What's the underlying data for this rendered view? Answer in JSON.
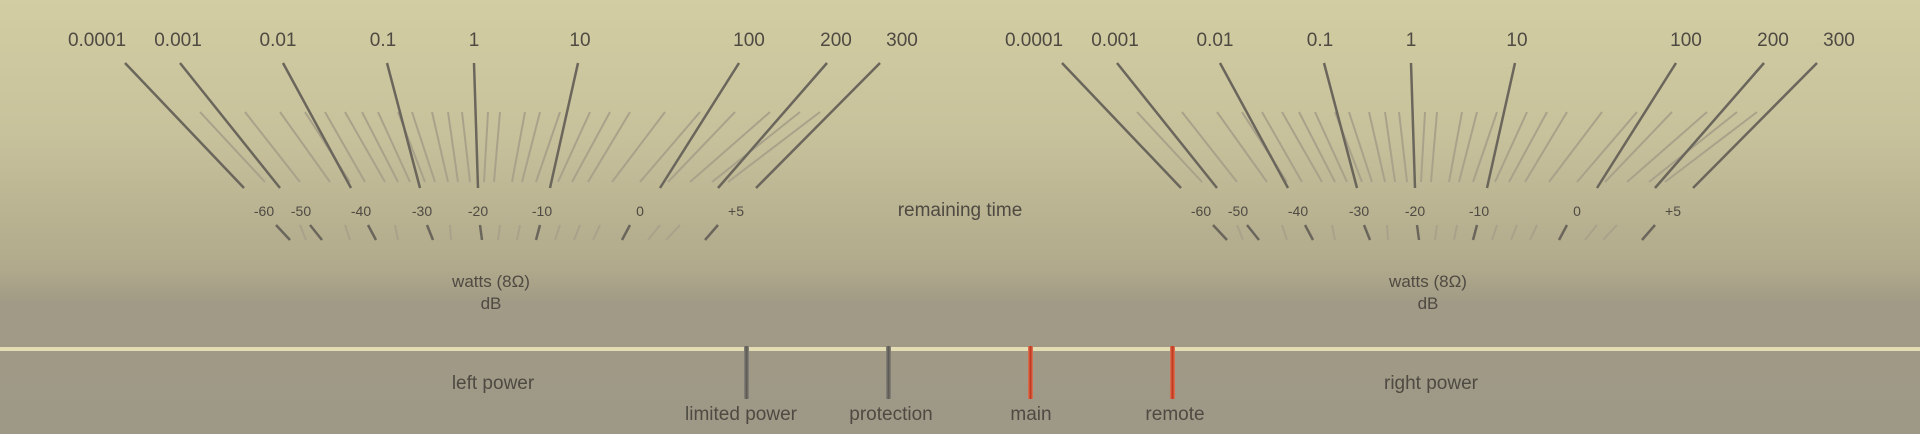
{
  "meters": {
    "left": {
      "watts_ticks": [
        "0.0001",
        "0.001",
        "0.01",
        "0.1",
        "1",
        "10",
        "100",
        "200",
        "300"
      ],
      "db_ticks": [
        "-60",
        "-50",
        "-40",
        "-30",
        "-20",
        "-10",
        "0",
        "+5"
      ],
      "unit_watts": "watts (8Ω)",
      "unit_db": "dB"
    },
    "right": {
      "watts_ticks": [
        "0.0001",
        "0.001",
        "0.01",
        "0.1",
        "1",
        "10",
        "100",
        "200",
        "300"
      ],
      "db_ticks": [
        "-60",
        "-50",
        "-40",
        "-30",
        "-20",
        "-10",
        "0",
        "+5"
      ],
      "unit_watts": "watts (8Ω)",
      "unit_db": "dB"
    }
  },
  "center_label": "remaining time",
  "power": {
    "left_label": "left power",
    "right_label": "right power"
  },
  "indicators": [
    {
      "label": "limited power",
      "color": "#6b6760"
    },
    {
      "label": "protection",
      "color": "#6b6760"
    },
    {
      "label": "main",
      "color": "#c0341c"
    },
    {
      "label": "remote",
      "color": "#c0341c"
    }
  ],
  "colors": {
    "tick": "#6b665c",
    "minor_tick": "#a9a28a",
    "rule": "#e4dcb3"
  }
}
